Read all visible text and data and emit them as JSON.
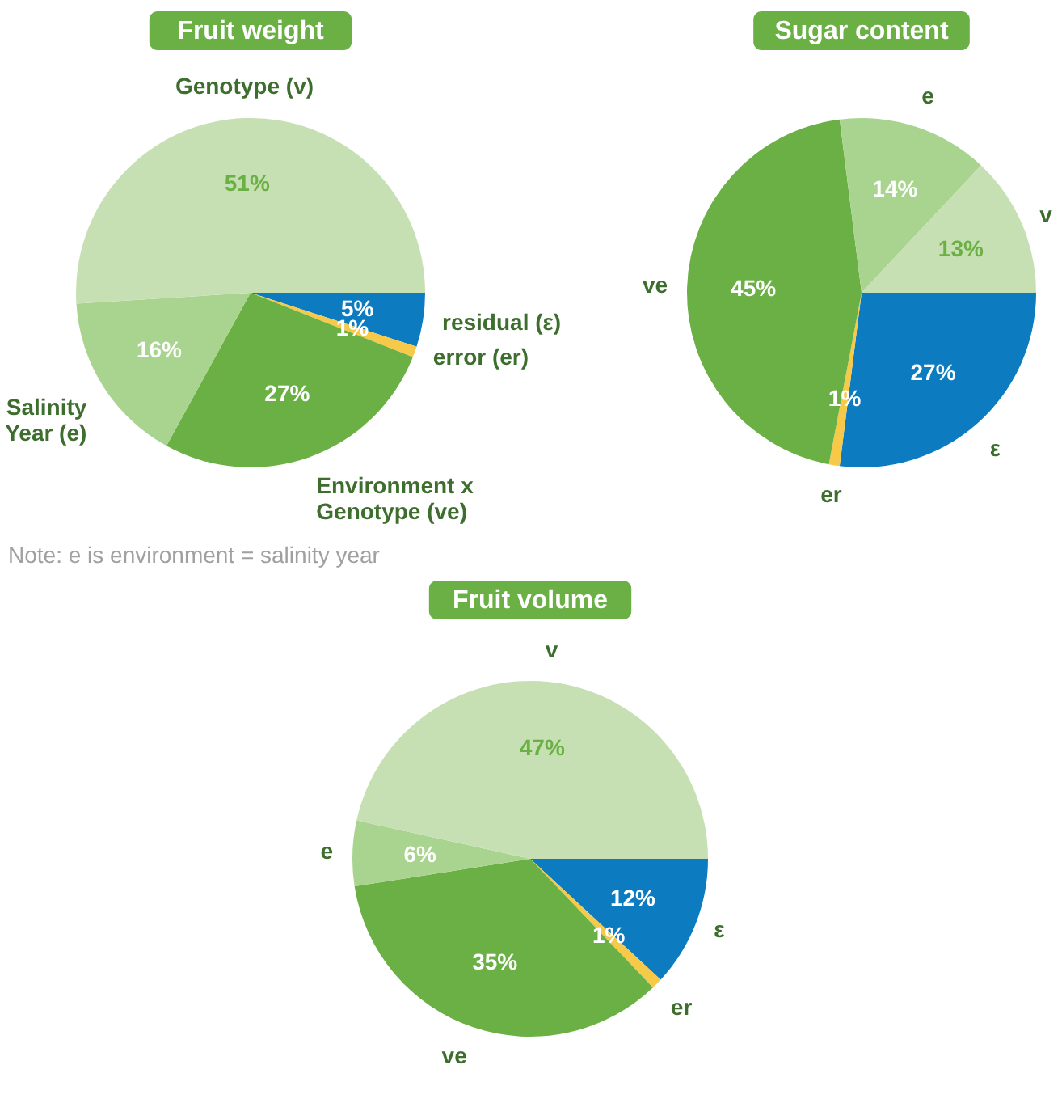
{
  "chart_data": [
    {
      "type": "pie",
      "title": "Fruit weight",
      "categories": [
        "residual (ε)",
        "error (er)",
        "Environment x\nGenotype (ve)",
        "Salinity\nYear (e)",
        "Genotype (v)"
      ],
      "values": [
        5,
        1,
        27,
        16,
        51
      ],
      "colors": [
        "#0c7bc0",
        "#f7c948",
        "#6ab044",
        "#a9d48f",
        "#c6e0b4"
      ],
      "value_labels": [
        "5%",
        "1%",
        "27%",
        "16%",
        "51%"
      ],
      "annotations": [
        "Note: e is environment = salinity year"
      ]
    },
    {
      "type": "pie",
      "title": "Sugar content",
      "categories": [
        "ε",
        "er",
        "ve",
        "e",
        "v"
      ],
      "values": [
        27,
        1,
        45,
        14,
        13
      ],
      "colors": [
        "#0c7bc0",
        "#f7c948",
        "#6ab044",
        "#a9d48f",
        "#c6e0b4"
      ],
      "value_labels": [
        "27%",
        "1%",
        "45%",
        "14%",
        "13%"
      ]
    },
    {
      "type": "pie",
      "title": "Fruit volume",
      "categories": [
        "ε",
        "er",
        "ve",
        "e",
        "v"
      ],
      "values": [
        12,
        1,
        35,
        6,
        47
      ],
      "colors": [
        "#0c7bc0",
        "#f7c948",
        "#6ab044",
        "#a9d48f",
        "#c6e0b4"
      ],
      "value_labels": [
        "12%",
        "1%",
        "35%",
        "6%",
        "47%"
      ]
    }
  ]
}
